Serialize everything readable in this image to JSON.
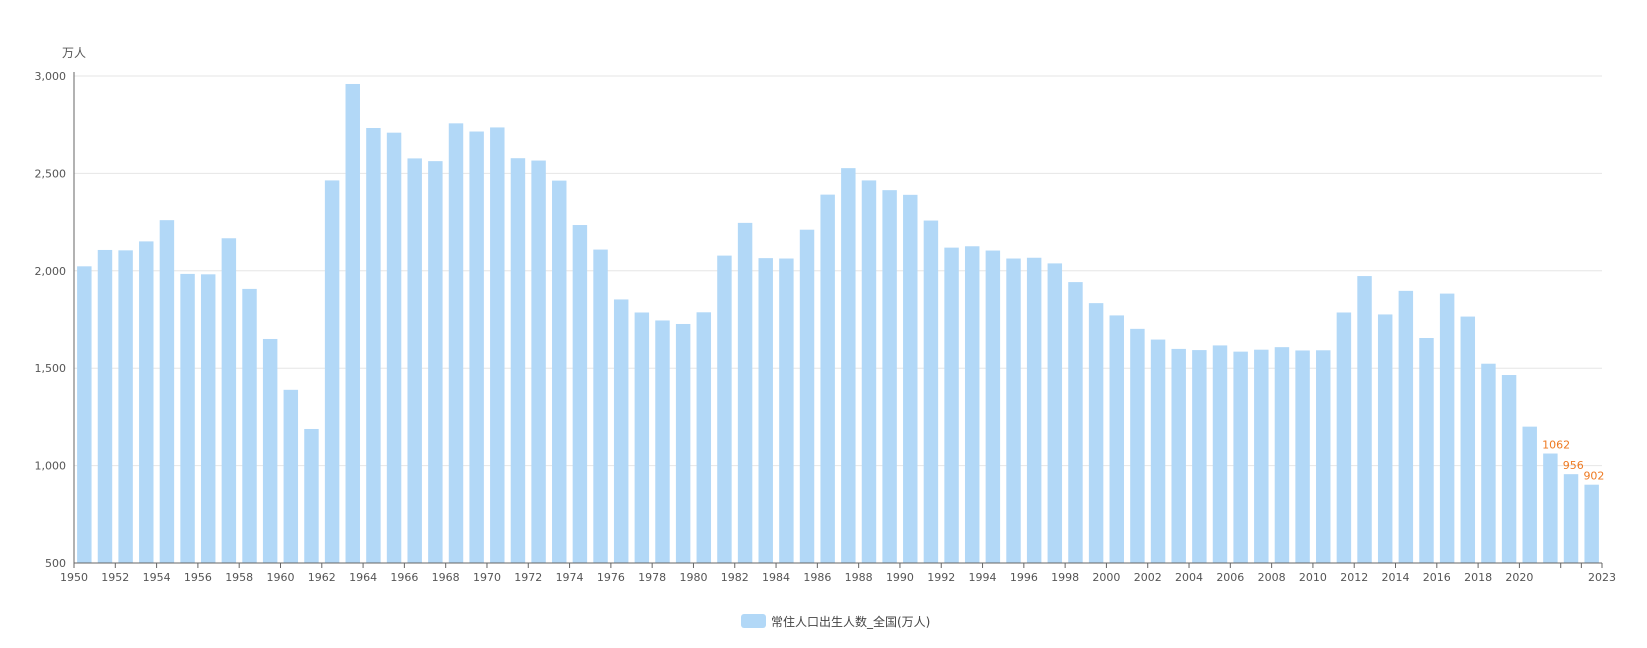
{
  "chart_data": {
    "type": "bar",
    "ylabel": "万人",
    "ylim": [
      500,
      3000
    ],
    "yticks": [
      500,
      1000,
      1500,
      2000,
      2500,
      3000
    ],
    "ytick_labels": [
      "500",
      "1,000",
      "1,500",
      "2,000",
      "2,500",
      "3,000"
    ],
    "xtick_labels": [
      "1950",
      "1952",
      "1954",
      "1956",
      "1958",
      "1960",
      "1962",
      "1964",
      "1966",
      "1968",
      "1970",
      "1972",
      "1974",
      "1976",
      "1978",
      "1980",
      "1982",
      "1984",
      "1986",
      "1988",
      "1990",
      "1992",
      "1994",
      "1996",
      "1998",
      "2000",
      "2002",
      "2004",
      "2006",
      "2008",
      "2010",
      "2012",
      "2014",
      "2016",
      "2018",
      "2020",
      "2023"
    ],
    "grid": true,
    "legend_position": "bottom-center",
    "colors": {
      "bar": "#b2d8f7",
      "label": "#ee7a22",
      "axis": "#666666",
      "grid": "#e6e6e6",
      "text": "#555555"
    },
    "categories": [
      1950,
      1951,
      1952,
      1953,
      1954,
      1955,
      1956,
      1957,
      1958,
      1959,
      1960,
      1961,
      1962,
      1963,
      1964,
      1965,
      1966,
      1967,
      1968,
      1969,
      1970,
      1971,
      1972,
      1973,
      1974,
      1975,
      1976,
      1977,
      1978,
      1979,
      1980,
      1981,
      1982,
      1983,
      1984,
      1985,
      1986,
      1987,
      1988,
      1989,
      1990,
      1991,
      1992,
      1993,
      1994,
      1995,
      1996,
      1997,
      1998,
      1999,
      2000,
      2001,
      2002,
      2003,
      2004,
      2005,
      2006,
      2007,
      2008,
      2009,
      2010,
      2011,
      2012,
      2013,
      2014,
      2015,
      2016,
      2017,
      2018,
      2019,
      2020,
      2021,
      2022,
      2023
    ],
    "series": [
      {
        "name": "常住人口出生人数_全国(万人)",
        "values": [
          2023,
          2107,
          2105,
          2151,
          2260,
          1984,
          1982,
          2167,
          1907,
          1650,
          1389,
          1188,
          2464,
          2959,
          2733,
          2709,
          2577,
          2563,
          2757,
          2715,
          2736,
          2578,
          2566,
          2463,
          2235,
          2109,
          1853,
          1786,
          1745,
          1727,
          1787,
          2078,
          2246,
          2065,
          2063,
          2211,
          2391,
          2527,
          2464,
          2414,
          2390,
          2258,
          2119,
          2126,
          2104,
          2063,
          2067,
          2038,
          1942,
          1834,
          1771,
          1702,
          1647,
          1599,
          1593,
          1617,
          1585,
          1595,
          1608,
          1591,
          1592,
          1786,
          1973,
          1776,
          1897,
          1655,
          1883,
          1765,
          1523,
          1465,
          1200,
          1062,
          956,
          902
        ],
        "data_labels": [
          {
            "category": 2021,
            "text": "1062"
          },
          {
            "category": 2022,
            "text": "956"
          },
          {
            "category": 2023,
            "text": "902"
          }
        ]
      }
    ]
  }
}
